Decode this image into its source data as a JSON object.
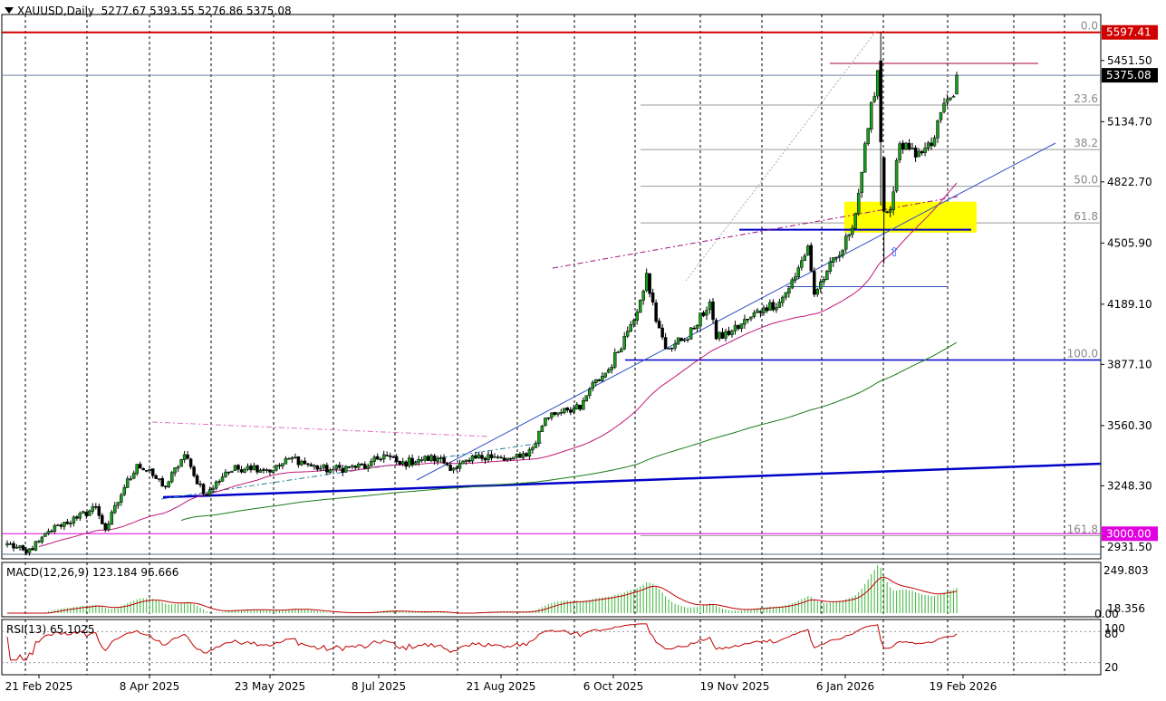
{
  "colors": {
    "background": "#ffffff",
    "candle_up": "#1b9e1b",
    "candle_down": "#000000",
    "ma_fast": "#c0197a",
    "ma_slow": "#1a7a1a",
    "trend_blue": "#0000c8",
    "trend_thin": "#3050c0",
    "red_line": "#d00000",
    "magenta": "#e000e0",
    "yellow_zone": "#ffff00",
    "macd_hist": "#3cb43c",
    "macd_signal": "#c00000",
    "rsi_line": "#c00000",
    "fib_gray": "#9a9a9a",
    "arrow": "#2050ff"
  },
  "header": {
    "title": "XAUUSD,Daily",
    "ohlc": "5277.67 5393.55 5276.86 5375.08",
    "menu_icon": "triangle-down-icon"
  },
  "chart_data": {
    "type": "candlestick",
    "symbol": "XAUUSD",
    "timeframe": "Daily",
    "ohlc_last": {
      "open": 5277.67,
      "high": 5393.55,
      "low": 5276.86,
      "close": 5375.08
    },
    "ylim": [
      2870,
      5690
    ],
    "x_tick_labels": [
      "21 Feb 2025",
      "8 Apr 2025",
      "23 May 2025",
      "8 Jul 2025",
      "21 Aug 2025",
      "6 Oct 2025",
      "19 Nov 2025",
      "6 Jan 2026",
      "19 Feb 2026"
    ],
    "y_tick_labels": [
      "5451.50",
      "5134.70",
      "4822.70",
      "4505.90",
      "4189.10",
      "3877.10",
      "3560.30",
      "3248.30",
      "2931.50"
    ],
    "price_markers": [
      {
        "label": "5597.41",
        "value": 5597.41,
        "color": "#d00000"
      },
      {
        "label": "5375.08",
        "value": 5375.08,
        "color": "#000000"
      },
      {
        "label": "3000.00",
        "value": 3000.0,
        "color": "#e000e0"
      }
    ],
    "fibonacci": [
      {
        "label": "0.0",
        "value": 5597.41
      },
      {
        "label": "23.6",
        "value": 5221.0
      },
      {
        "label": "38.2",
        "value": 4990.0
      },
      {
        "label": "50.0",
        "value": 4800.0
      },
      {
        "label": "61.8",
        "value": 4610.0
      },
      {
        "label": "100.0",
        "value": 3900.0
      },
      {
        "label": "161.8",
        "value": 2990.0
      }
    ],
    "close_anchors": [
      [
        0,
        2950
      ],
      [
        6,
        2900
      ],
      [
        10,
        2960
      ],
      [
        16,
        3045
      ],
      [
        22,
        3080
      ],
      [
        28,
        3140
      ],
      [
        31,
        3020
      ],
      [
        37,
        3240
      ],
      [
        41,
        3360
      ],
      [
        46,
        3300
      ],
      [
        50,
        3245
      ],
      [
        56,
        3410
      ],
      [
        59,
        3300
      ],
      [
        63,
        3200
      ],
      [
        69,
        3320
      ],
      [
        76,
        3350
      ],
      [
        84,
        3330
      ],
      [
        90,
        3395
      ],
      [
        96,
        3350
      ],
      [
        102,
        3330
      ],
      [
        108,
        3345
      ],
      [
        114,
        3350
      ],
      [
        119,
        3410
      ],
      [
        124,
        3360
      ],
      [
        130,
        3385
      ],
      [
        136,
        3390
      ],
      [
        141,
        3340
      ],
      [
        146,
        3375
      ],
      [
        152,
        3410
      ],
      [
        157,
        3380
      ],
      [
        162,
        3395
      ],
      [
        166,
        3445
      ],
      [
        170,
        3600
      ],
      [
        176,
        3650
      ],
      [
        181,
        3645
      ],
      [
        184,
        3750
      ],
      [
        190,
        3850
      ],
      [
        196,
        4050
      ],
      [
        200,
        4210
      ],
      [
        202,
        4350
      ],
      [
        205,
        4100
      ],
      [
        208,
        3960
      ],
      [
        213,
        4000
      ],
      [
        217,
        4060
      ],
      [
        222,
        4200
      ],
      [
        224,
        4010
      ],
      [
        229,
        4050
      ],
      [
        234,
        4110
      ],
      [
        239,
        4170
      ],
      [
        244,
        4200
      ],
      [
        249,
        4330
      ],
      [
        253,
        4490
      ],
      [
        255,
        4240
      ],
      [
        259,
        4360
      ],
      [
        264,
        4470
      ],
      [
        268,
        4660
      ],
      [
        272,
        5100
      ],
      [
        275,
        5400
      ],
      [
        277,
        4670
      ],
      [
        279,
        4680
      ],
      [
        282,
        5020
      ],
      [
        287,
        4950
      ],
      [
        292,
        5010
      ],
      [
        296,
        5230
      ],
      [
        299,
        5266
      ],
      [
        300,
        5375
      ]
    ],
    "overlays": [
      {
        "name": "ma_fast",
        "color": "#c0197a"
      },
      {
        "name": "ma_slow",
        "color": "#1a7a1a"
      },
      {
        "name": "long_trend",
        "color": "#0000c8"
      }
    ],
    "annotations": [
      {
        "kind": "support_zone",
        "from": 4560,
        "to": 4720,
        "color": "#ffff00"
      },
      {
        "kind": "horizontal",
        "value": 4575,
        "color": "#0000c8"
      },
      {
        "kind": "horizontal",
        "value": 3900,
        "color": "#0000c8"
      },
      {
        "kind": "horizontal",
        "value": 4280,
        "color": "#3050c0"
      },
      {
        "kind": "arrow_up",
        "value": 4420
      }
    ]
  },
  "macd": {
    "label": "MACD(12,26,9) 123.184 96.666",
    "top_label": "249.803",
    "mid_label": "18.356",
    "zero_label": "0.00"
  },
  "rsi": {
    "label": "RSI(13) 65.1025",
    "upper_label": "100",
    "mid_label": "80",
    "low_label": "20"
  }
}
